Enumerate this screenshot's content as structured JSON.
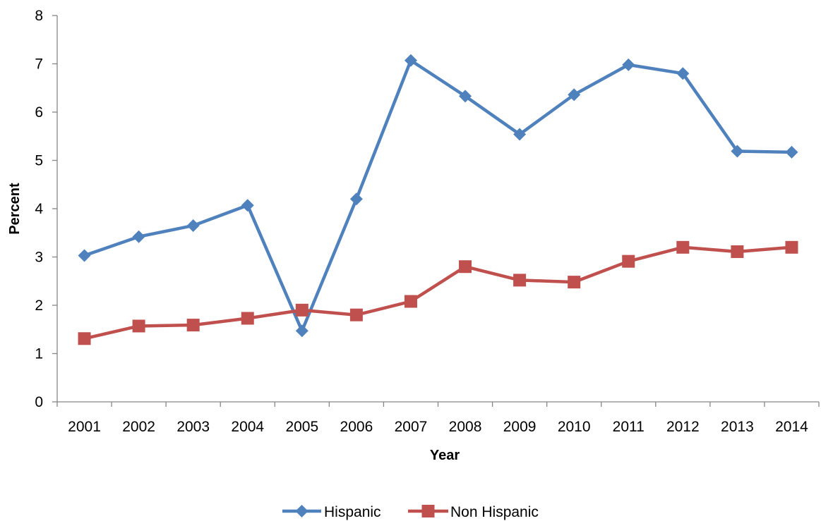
{
  "chart_data": {
    "type": "line",
    "title": "",
    "xlabel": "Year",
    "ylabel": "Percent",
    "categories": [
      "2001",
      "2002",
      "2003",
      "2004",
      "2005",
      "2006",
      "2007",
      "2008",
      "2009",
      "2010",
      "2011",
      "2012",
      "2013",
      "2014"
    ],
    "ylim": [
      0,
      8
    ],
    "yticks": [
      "0",
      "1",
      "2",
      "3",
      "4",
      "5",
      "6",
      "7",
      "8"
    ],
    "grid": false,
    "legend_position": "bottom",
    "series": [
      {
        "name": "Hispanic",
        "color": "#4F81BD",
        "marker": "diamond",
        "values": [
          3.03,
          3.42,
          3.65,
          4.07,
          1.47,
          4.2,
          7.07,
          6.33,
          5.54,
          6.36,
          6.98,
          6.8,
          5.19,
          5.17
        ]
      },
      {
        "name": "Non Hispanic",
        "color": "#C0504D",
        "marker": "square",
        "values": [
          1.31,
          1.57,
          1.59,
          1.73,
          1.9,
          1.8,
          2.08,
          2.8,
          2.52,
          2.48,
          2.91,
          3.2,
          3.11,
          3.2
        ]
      }
    ]
  }
}
